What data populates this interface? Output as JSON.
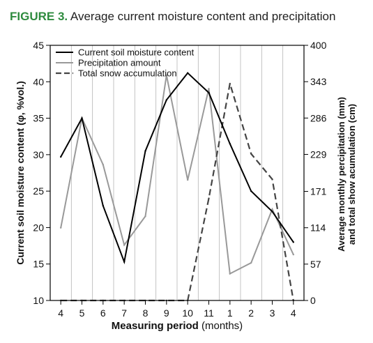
{
  "figure": {
    "label": "FIGURE 3.",
    "title": "Average current moisture content and precipitation"
  },
  "chart_data": {
    "type": "line",
    "categories": [
      "4",
      "5",
      "6",
      "7",
      "8",
      "9",
      "10",
      "11",
      "1",
      "2",
      "3",
      "4"
    ],
    "xlabel_bold": "Measuring period",
    "xlabel_rest": " (months)",
    "ylabel": "Current soil moisture content (φ, %vol.)",
    "ylim": [
      10,
      45
    ],
    "yticks": [
      10,
      15,
      20,
      25,
      30,
      35,
      40,
      45
    ],
    "y2label_line1": "Average monthly percipitation (mm)",
    "y2label_line2": "and total show acumulation (cm)",
    "y2lim": [
      0,
      400
    ],
    "y2ticks": [
      0,
      57,
      114,
      171,
      229,
      286,
      343,
      400
    ],
    "grid": "vertical",
    "legend_position": "top-left",
    "series": [
      {
        "name": "Current soil moisture content",
        "axis": "left",
        "color": "#000000",
        "style": "solid",
        "values": [
          29.7,
          35.0,
          23.0,
          15.3,
          30.5,
          37.5,
          41.2,
          38.5,
          31.5,
          25.0,
          22.2,
          18.0
        ]
      },
      {
        "name": "Precipitation amount",
        "axis": "right",
        "color": "#999999",
        "style": "solid",
        "values": [
          114,
          286,
          213,
          87,
          132,
          353,
          189,
          332,
          42,
          59,
          143,
          72
        ]
      },
      {
        "name": "Total snow accumulation",
        "axis": "right",
        "color": "#444444",
        "style": "dashed",
        "values": [
          0,
          0,
          0,
          0,
          0,
          0,
          0,
          160,
          340,
          230,
          190,
          0
        ]
      }
    ]
  }
}
